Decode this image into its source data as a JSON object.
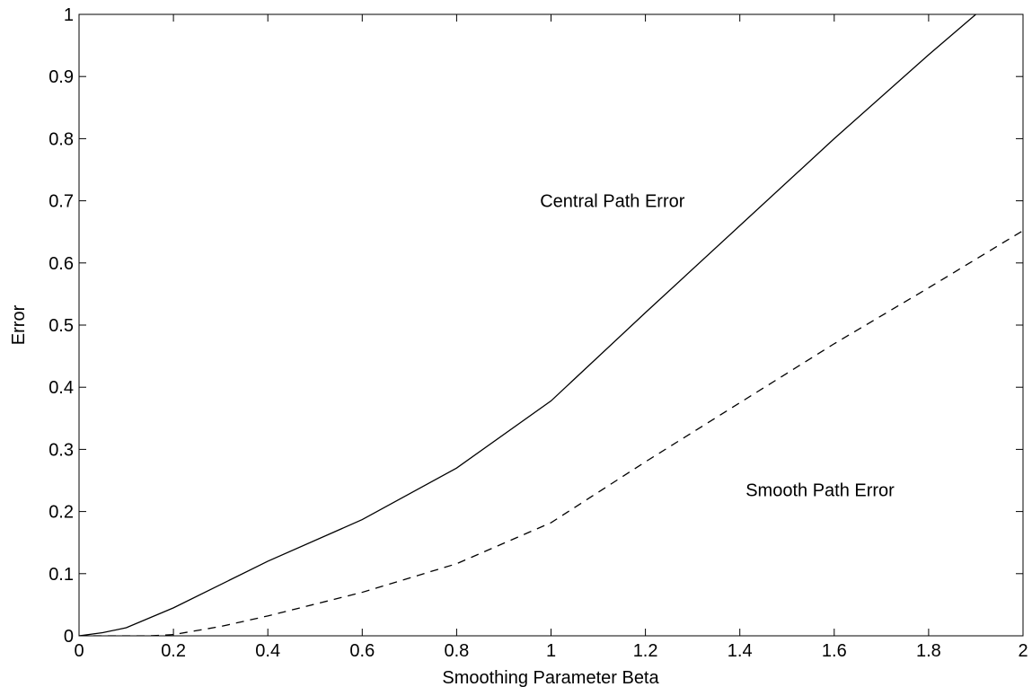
{
  "chart_data": {
    "type": "line",
    "title": "",
    "xlabel": "Smoothing Parameter Beta",
    "ylabel": "Error",
    "xlim": [
      0,
      2
    ],
    "ylim": [
      0,
      1
    ],
    "xticks": [
      0,
      0.2,
      0.4,
      0.6,
      0.8,
      1,
      1.2,
      1.4,
      1.6,
      1.8,
      2
    ],
    "xtick_labels": [
      "0",
      "0.2",
      "0.4",
      "0.6",
      "0.8",
      "1",
      "1.2",
      "1.4",
      "1.6",
      "1.8",
      "2"
    ],
    "yticks": [
      0,
      0.1,
      0.2,
      0.3,
      0.4,
      0.5,
      0.6,
      0.7,
      0.8,
      0.9,
      1
    ],
    "ytick_labels": [
      "0",
      "0.1",
      "0.2",
      "0.3",
      "0.4",
      "0.5",
      "0.6",
      "0.7",
      "0.8",
      "0.9",
      "1"
    ],
    "grid": false,
    "legend": "none",
    "series": [
      {
        "line_style": "solid",
        "color": "#000000",
        "x": [
          0,
          0.05,
          0.1,
          0.2,
          0.4,
          0.6,
          0.8,
          1.0,
          1.2,
          1.4,
          1.6,
          1.8,
          1.9
        ],
        "y": [
          0,
          0.005,
          0.013,
          0.045,
          0.12,
          0.187,
          0.27,
          0.378,
          0.52,
          0.66,
          0.8,
          0.935,
          1.0
        ]
      },
      {
        "line_style": "dashed",
        "color": "#000000",
        "x": [
          0,
          0.15,
          0.2,
          0.3,
          0.4,
          0.6,
          0.8,
          1.0,
          1.2,
          1.4,
          1.6,
          1.8,
          2.0
        ],
        "y": [
          0,
          0.0,
          0.002,
          0.015,
          0.032,
          0.07,
          0.116,
          0.182,
          0.28,
          0.375,
          0.47,
          0.56,
          0.652
        ]
      }
    ],
    "annotations": [
      {
        "text": "Central Path Error",
        "x": 1.13,
        "y": 0.7
      },
      {
        "text": "Smooth Path Error",
        "x": 1.57,
        "y": 0.235
      }
    ]
  }
}
